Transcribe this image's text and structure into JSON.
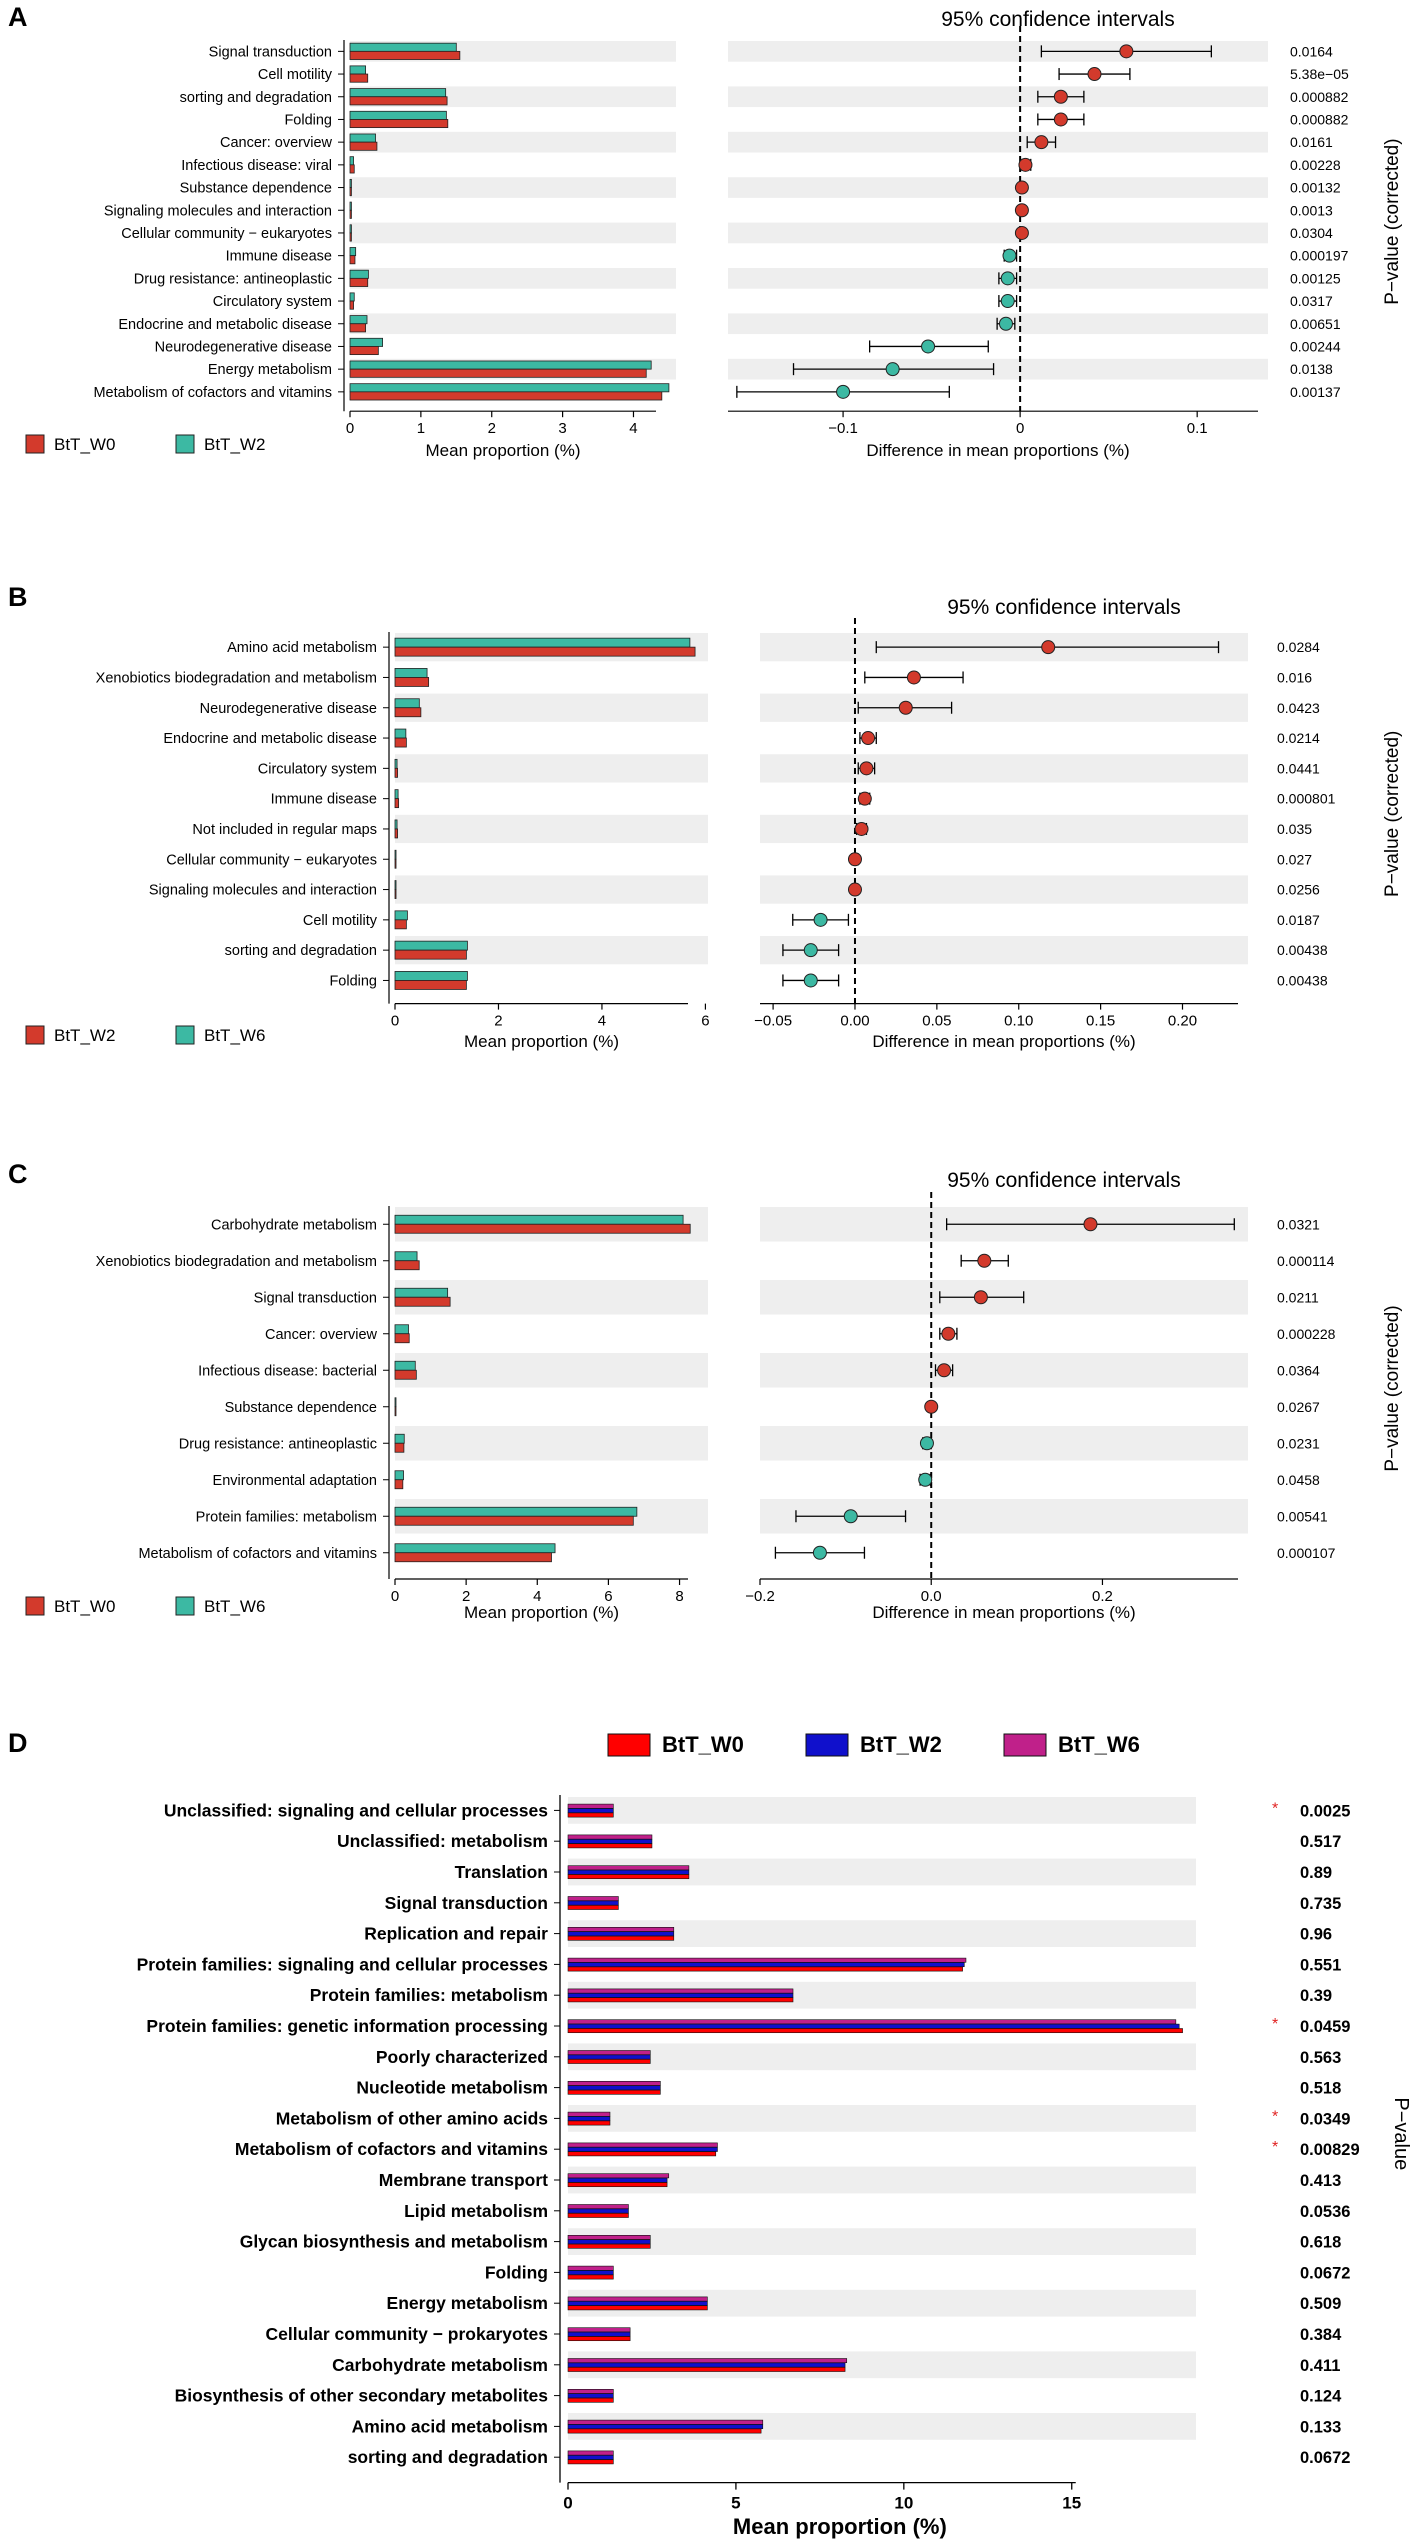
{
  "chart_data": [
    {
      "type": "bar+ci",
      "panel": "A",
      "ci_title": "95% confidence intervals",
      "xlabel_bar": "Mean proportion (%)",
      "xlabel_ci": "Difference in mean proportions (%)",
      "ylabel_right": "P−value (corrected)",
      "bar_xlim": [
        0,
        4.6
      ],
      "bar_ticks": [
        "0",
        "1",
        "2",
        "3",
        "4"
      ],
      "ci_xlim": [
        -0.165,
        0.14
      ],
      "ci_ticks": [
        "−0.1",
        "0",
        "0.1"
      ],
      "legend": [
        {
          "name": "BtT_W0",
          "color": "#d33a2c"
        },
        {
          "name": "BtT_W2",
          "color": "#3cb9a3"
        }
      ],
      "categories": [
        "Signal transduction",
        "Cell motility",
        "sorting and degradation",
        "Folding",
        "Cancer: overview",
        "Infectious disease: viral",
        "Substance dependence",
        "Signaling molecules and interaction",
        "Cellular community − eukaryotes",
        "Immune disease",
        "Drug resistance: antineoplastic",
        "Circulatory system",
        "Endocrine and metabolic disease",
        "Neurodegenerative disease",
        "Energy metabolism",
        "Metabolism of cofactors and vitamins"
      ],
      "series": [
        {
          "name": "BtT_W0",
          "values": [
            1.55,
            0.25,
            1.37,
            1.38,
            0.38,
            0.06,
            0.02,
            0.02,
            0.02,
            0.07,
            0.25,
            0.05,
            0.22,
            0.4,
            4.18,
            4.4
          ]
        },
        {
          "name": "BtT_W2",
          "values": [
            1.5,
            0.22,
            1.35,
            1.36,
            0.36,
            0.05,
            0.02,
            0.02,
            0.02,
            0.08,
            0.26,
            0.06,
            0.24,
            0.46,
            4.25,
            4.5
          ]
        }
      ],
      "diff": [
        0.06,
        0.042,
        0.023,
        0.023,
        0.012,
        0.003,
        0.001,
        0.001,
        0.001,
        -0.006,
        -0.007,
        -0.007,
        -0.008,
        -0.052,
        -0.072,
        -0.1
      ],
      "ci_low": [
        0.012,
        0.022,
        0.01,
        0.01,
        0.004,
        0.001,
        0.0,
        0.0,
        0.0,
        -0.009,
        -0.012,
        -0.012,
        -0.013,
        -0.085,
        -0.128,
        -0.16
      ],
      "ci_high": [
        0.108,
        0.062,
        0.036,
        0.036,
        0.02,
        0.006,
        0.002,
        0.002,
        0.002,
        -0.002,
        -0.002,
        -0.002,
        -0.003,
        -0.018,
        -0.015,
        -0.04
      ],
      "pvalues": [
        "0.0164",
        "5.38e−05",
        "0.000882",
        "0.000882",
        "0.0161",
        "0.00228",
        "0.00132",
        "0.0013",
        "0.0304",
        "0.000197",
        "0.00125",
        "0.0317",
        "0.00651",
        "0.00244",
        "0.0138",
        "0.00137"
      ]
    },
    {
      "type": "bar+ci",
      "panel": "B",
      "ci_title": "95% confidence intervals",
      "xlabel_bar": "Mean proportion (%)",
      "xlabel_ci": "Difference in mean proportions (%)",
      "ylabel_right": "P−value (corrected)",
      "bar_xlim": [
        0,
        6.05
      ],
      "bar_ticks": [
        "0",
        "2",
        "4",
        "6"
      ],
      "ci_xlim": [
        -0.058,
        0.24
      ],
      "ci_ticks": [
        "−0.05",
        "0.00",
        "0.05",
        "0.10",
        "0.15",
        "0.20"
      ],
      "legend": [
        {
          "name": "BtT_W2",
          "color": "#d33a2c"
        },
        {
          "name": "BtT_W6",
          "color": "#3cb9a3"
        }
      ],
      "categories": [
        "Amino acid metabolism",
        "Xenobiotics biodegradation and metabolism",
        "Neurodegenerative disease",
        "Endocrine and metabolic disease",
        "Circulatory system",
        "Immune disease",
        "Not included in regular maps",
        "Cellular community − eukaryotes",
        "Signaling molecules and interaction",
        "Cell motility",
        "sorting and degradation",
        "Folding"
      ],
      "series": [
        {
          "name": "BtT_W2",
          "values": [
            5.8,
            0.65,
            0.5,
            0.22,
            0.05,
            0.07,
            0.05,
            0.02,
            0.02,
            0.22,
            1.38,
            1.38
          ]
        },
        {
          "name": "BtT_W6",
          "values": [
            5.7,
            0.62,
            0.47,
            0.21,
            0.04,
            0.06,
            0.04,
            0.02,
            0.02,
            0.24,
            1.4,
            1.4
          ]
        }
      ],
      "diff": [
        0.118,
        0.036,
        0.031,
        0.008,
        0.007,
        0.006,
        0.004,
        0.0,
        0.0,
        -0.021,
        -0.027,
        -0.027
      ],
      "ci_low": [
        0.013,
        0.006,
        0.002,
        0.003,
        0.002,
        0.003,
        0.001,
        -0.002,
        -0.002,
        -0.038,
        -0.044,
        -0.044
      ],
      "ci_high": [
        0.222,
        0.066,
        0.059,
        0.013,
        0.012,
        0.009,
        0.007,
        0.002,
        0.002,
        -0.004,
        -0.01,
        -0.01
      ],
      "pvalues": [
        "0.0284",
        "0.016",
        "0.0423",
        "0.0214",
        "0.0441",
        "0.000801",
        "0.035",
        "0.027",
        "0.0256",
        "0.0187",
        "0.00438",
        "0.00438"
      ]
    },
    {
      "type": "bar+ci",
      "panel": "C",
      "ci_title": "95% confidence intervals",
      "xlabel_bar": "Mean proportion (%)",
      "xlabel_ci": "Difference in mean proportions (%)",
      "ylabel_right": "P−value (corrected)",
      "bar_xlim": [
        0,
        8.8
      ],
      "bar_ticks": [
        "0",
        "2",
        "4",
        "6",
        "8"
      ],
      "ci_xlim": [
        -0.2,
        0.37
      ],
      "ci_ticks": [
        "−0.2",
        "0.0",
        "0.2"
      ],
      "legend": [
        {
          "name": "BtT_W0",
          "color": "#d33a2c"
        },
        {
          "name": "BtT_W6",
          "color": "#3cb9a3"
        }
      ],
      "categories": [
        "Carbohydrate metabolism",
        "Xenobiotics biodegradation and metabolism",
        "Signal transduction",
        "Cancer: overview",
        "Infectious disease: bacterial",
        "Substance dependence",
        "Drug resistance: antineoplastic",
        "Environmental adaptation",
        "Protein families: metabolism",
        "Metabolism of cofactors and vitamins"
      ],
      "series": [
        {
          "name": "BtT_W0",
          "values": [
            8.3,
            0.68,
            1.55,
            0.4,
            0.6,
            0.02,
            0.25,
            0.22,
            6.7,
            4.4
          ]
        },
        {
          "name": "BtT_W6",
          "values": [
            8.1,
            0.62,
            1.48,
            0.38,
            0.57,
            0.02,
            0.26,
            0.24,
            6.8,
            4.5
          ]
        }
      ],
      "diff": [
        0.186,
        0.062,
        0.058,
        0.02,
        0.015,
        0.0,
        -0.005,
        -0.007,
        -0.094,
        -0.13
      ],
      "ci_low": [
        0.018,
        0.035,
        0.01,
        0.01,
        0.005,
        -0.001,
        -0.01,
        -0.013,
        -0.158,
        -0.182
      ],
      "ci_high": [
        0.354,
        0.09,
        0.108,
        0.03,
        0.025,
        0.001,
        0.0,
        -0.001,
        -0.03,
        -0.078
      ],
      "pvalues": [
        "0.0321",
        "0.000114",
        "0.0211",
        "0.000228",
        "0.0364",
        "0.0267",
        "0.0231",
        "0.0458",
        "0.00541",
        "0.000107"
      ]
    },
    {
      "type": "bar",
      "panel": "D",
      "xlabel": "Mean proportion (%)",
      "ylabel_right": "P−value",
      "xlim": [
        0,
        18.7
      ],
      "ticks": [
        "0",
        "5",
        "10",
        "15"
      ],
      "legend": [
        {
          "name": "BtT_W0",
          "color": "#ff0000"
        },
        {
          "name": "BtT_W2",
          "color": "#1010cc"
        },
        {
          "name": "BtT_W6",
          "color": "#c0208a"
        }
      ],
      "categories": [
        "Unclassified: signaling and cellular processes",
        "Unclassified: metabolism",
        "Translation",
        "Signal transduction",
        "Replication and repair",
        "Protein families: signaling and cellular processes",
        "Protein families: metabolism",
        "Protein families: genetic information processing",
        "Poorly characterized",
        "Nucleotide metabolism",
        "Metabolism of other amino acids",
        "Metabolism of cofactors and vitamins",
        "Membrane transport",
        "Lipid metabolism",
        "Glycan biosynthesis and metabolism",
        "Folding",
        "Energy metabolism",
        "Cellular community − prokaryotes",
        "Carbohydrate metabolism",
        "Biosynthesis of other secondary metabolites",
        "Amino acid metabolism",
        "sorting and degradation"
      ],
      "series": [
        {
          "name": "BtT_W0",
          "values": [
            1.35,
            2.5,
            3.6,
            1.5,
            3.15,
            11.75,
            6.7,
            18.3,
            2.45,
            2.75,
            1.25,
            4.4,
            2.95,
            1.8,
            2.45,
            1.35,
            4.15,
            1.85,
            8.25,
            1.35,
            5.75,
            1.35
          ]
        },
        {
          "name": "BtT_W2",
          "values": [
            1.35,
            2.5,
            3.6,
            1.5,
            3.15,
            11.8,
            6.7,
            18.2,
            2.45,
            2.75,
            1.25,
            4.45,
            2.95,
            1.8,
            2.45,
            1.35,
            4.15,
            1.85,
            8.25,
            1.35,
            5.8,
            1.35
          ]
        },
        {
          "name": "BtT_W6",
          "values": [
            1.35,
            2.5,
            3.6,
            1.5,
            3.15,
            11.85,
            6.7,
            18.1,
            2.45,
            2.75,
            1.25,
            4.45,
            3.0,
            1.8,
            2.45,
            1.35,
            4.15,
            1.85,
            8.3,
            1.35,
            5.8,
            1.35
          ]
        }
      ],
      "pvalues": [
        "0.0025",
        "0.517",
        "0.89",
        "0.735",
        "0.96",
        "0.551",
        "0.39",
        "0.0459",
        "0.563",
        "0.518",
        "0.0349",
        "0.00829",
        "0.413",
        "0.0536",
        "0.618",
        "0.0672",
        "0.509",
        "0.384",
        "0.411",
        "0.124",
        "0.133",
        "0.0672"
      ],
      "significant": [
        true,
        false,
        false,
        false,
        false,
        false,
        false,
        true,
        false,
        false,
        true,
        true,
        false,
        false,
        false,
        false,
        false,
        false,
        false,
        false,
        false,
        false
      ],
      "sig_marker": "*"
    }
  ]
}
